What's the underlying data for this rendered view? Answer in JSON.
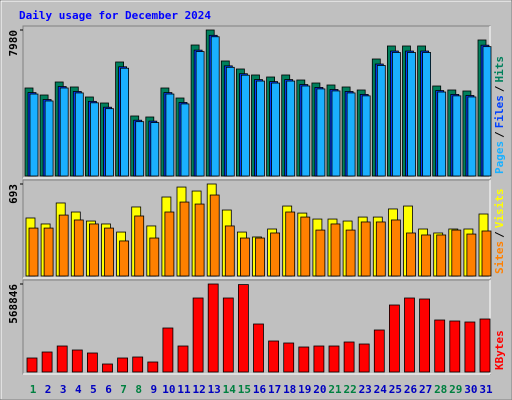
{
  "chart_data": [
    {
      "type": "bar",
      "title": "Daily usage for December 2024",
      "ylim": [
        0,
        7980
      ],
      "yticks": [
        7980
      ],
      "legend_separator": "/",
      "series": [
        {
          "name": "Hits",
          "color": "#00805c",
          "values": [
            4810,
            4427,
            5138,
            4865,
            4318,
            3990,
            6231,
            3280,
            3225,
            4810,
            4263,
            7160,
            7980,
            6286,
            5849,
            5521,
            5411,
            5521,
            5247,
            5083,
            4974,
            4865,
            4701,
            6395,
            7106,
            7106,
            7106,
            4919,
            4701,
            4646,
            7434
          ]
        },
        {
          "name": "Files",
          "color": "#0040ff",
          "values": [
            4560,
            4180,
            4890,
            4620,
            4080,
            3760,
            5970,
            3050,
            3000,
            4560,
            4020,
            6880,
            7690,
            6020,
            5590,
            5270,
            5160,
            5270,
            5000,
            4840,
            4730,
            4620,
            4460,
            6120,
            6830,
            6830,
            6830,
            4670,
            4460,
            4400,
            7150
          ]
        },
        {
          "name": "Pages",
          "color": "#1ab0ff",
          "values": [
            4480,
            4100,
            4810,
            4540,
            4000,
            3680,
            5890,
            2970,
            2920,
            4480,
            3940,
            6800,
            7610,
            5940,
            5510,
            5190,
            5080,
            5190,
            4920,
            4760,
            4650,
            4540,
            4380,
            6040,
            6750,
            6750,
            6750,
            4590,
            4380,
            4320,
            7070
          ]
        }
      ]
    },
    {
      "type": "bar",
      "ylim": [
        0,
        693
      ],
      "yticks": [
        693
      ],
      "legend_separator": "/",
      "series": [
        {
          "name": "Visits",
          "color": "#ffff00",
          "values": [
            437,
            392,
            550,
            482,
            414,
            392,
            331,
            520,
            377,
            595,
            670,
            640,
            693,
            497,
            331,
            294,
            354,
            527,
            474,
            429,
            429,
            414,
            444,
            444,
            505,
            527,
            354,
            324,
            354,
            354,
            467
          ]
        },
        {
          "name": "Sites",
          "color": "#ff8000",
          "values": [
            361,
            361,
            459,
            422,
            392,
            361,
            264,
            452,
            286,
            482,
            557,
            542,
            610,
            377,
            286,
            286,
            324,
            482,
            444,
            346,
            392,
            346,
            407,
            407,
            422,
            324,
            309,
            309,
            346,
            316,
            339
          ]
        }
      ]
    },
    {
      "type": "bar",
      "ylim": [
        0,
        568846
      ],
      "yticks": [
        568846
      ],
      "categories": [
        "1",
        "2",
        "3",
        "4",
        "5",
        "6",
        "7",
        "8",
        "9",
        "10",
        "11",
        "12",
        "13",
        "14",
        "15",
        "16",
        "17",
        "18",
        "19",
        "20",
        "21",
        "22",
        "23",
        "24",
        "25",
        "26",
        "27",
        "28",
        "29",
        "30",
        "31"
      ],
      "category_colors": [
        "#008040",
        "#0000c0",
        "#0000c0",
        "#0000c0",
        "#0000c0",
        "#0000c0",
        "#008040",
        "#008040",
        "#0000c0",
        "#0000c0",
        "#0000c0",
        "#0000c0",
        "#0000c0",
        "#008040",
        "#008040",
        "#0000c0",
        "#0000c0",
        "#0000c0",
        "#0000c0",
        "#0000c0",
        "#008040",
        "#008040",
        "#0000c0",
        "#0000c0",
        "#0000c0",
        "#0000c0",
        "#0000c0",
        "#008040",
        "#008040",
        "#0000c0",
        "#0000c0"
      ],
      "series": [
        {
          "name": "KBytes",
          "color": "#ff0000",
          "values": [
            90496,
            129280,
            168064,
            142208,
            122816,
            51712,
            90496,
            96960,
            64640,
            284416,
            168064,
            478336,
            568846,
            478336,
            565000,
            310272,
            200384,
            187456,
            161600,
            168064,
            168064,
            193920,
            180992,
            271488,
            433088,
            478336,
            471872,
            336128,
            329664,
            323200,
            342592
          ]
        }
      ]
    }
  ]
}
